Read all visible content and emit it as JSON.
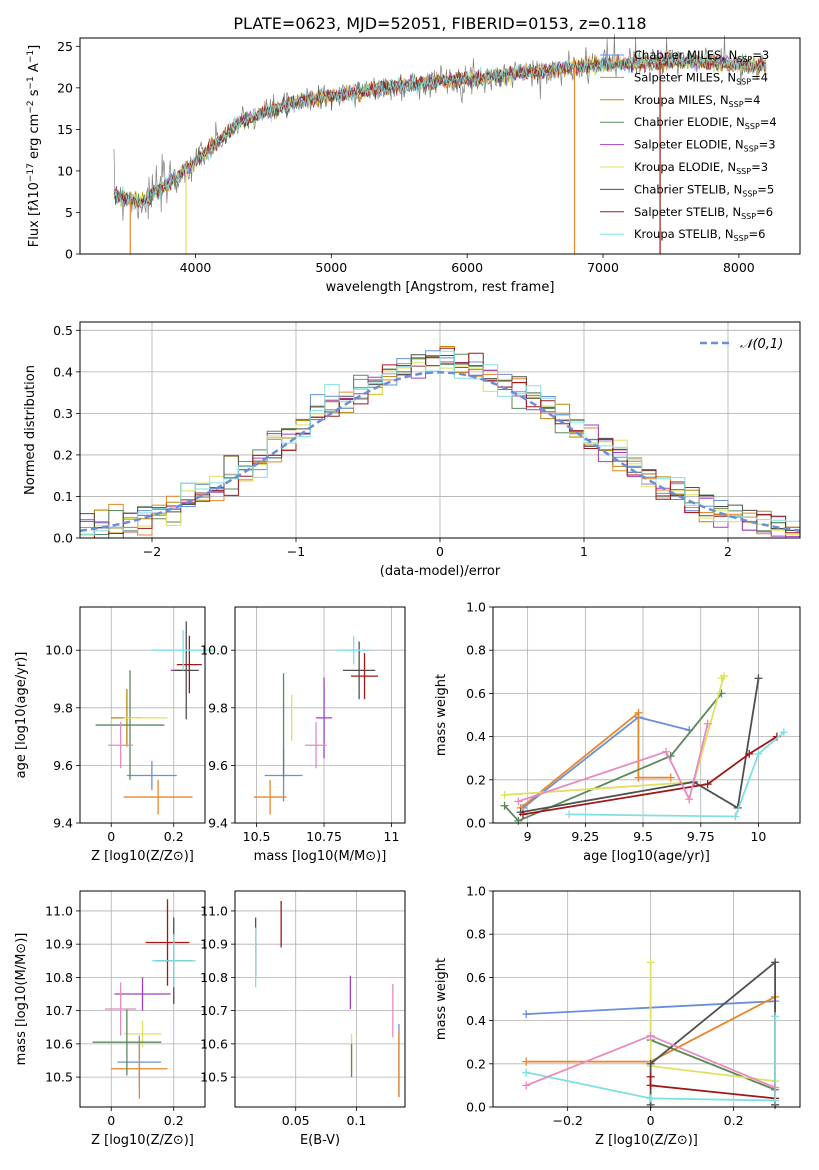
{
  "figure": {
    "title": "PLATE=0623, MJD=52051, FIBERID=0153, z=0.118"
  },
  "chart_data": [
    {
      "id": "spectrum",
      "type": "line",
      "xlabel": "wavelength [Angstrom, rest frame]",
      "ylabel": "Flux [f_λ 10^-17 erg cm^-2 s^-1 A^-1]",
      "xlim": [
        3150,
        8450
      ],
      "ylim": [
        0,
        26
      ],
      "xticks": [
        4000,
        5000,
        6000,
        7000,
        8000
      ],
      "yticks": [
        0,
        5,
        10,
        15,
        20,
        25
      ],
      "grid": false,
      "legend_position": "top-right",
      "observed_color": "#808080",
      "continuum": {
        "x": [
          3400,
          3600,
          3800,
          3950,
          4100,
          4300,
          4500,
          4800,
          5200,
          5600,
          6000,
          6400,
          6800,
          7200,
          7600,
          8000,
          8200
        ],
        "y": [
          7.2,
          6.2,
          8.5,
          10.5,
          12.5,
          15.5,
          17.0,
          18.5,
          19.5,
          20.5,
          21.0,
          21.8,
          22.5,
          23.0,
          23.2,
          22.8,
          22.6
        ]
      },
      "series": [
        {
          "name": "Chabrier MILES, N_SSP=3",
          "color": "#6a8fd8"
        },
        {
          "name": "Salpeter MILES, N_SSP=4",
          "color": "#e8862a"
        },
        {
          "name": "Kroupa MILES, N_SSP=4",
          "color": "#b8860b"
        },
        {
          "name": "Chabrier ELODIE, N_SSP=4",
          "color": "#5a8a5a"
        },
        {
          "name": "Salpeter ELODIE, N_SSP=3",
          "color": "#a040c0"
        },
        {
          "name": "Kroupa ELODIE, N_SSP=3",
          "color": "#e0e060"
        },
        {
          "name": "Chabrier STELIB, N_SSP=5",
          "color": "#505050"
        },
        {
          "name": "Salpeter STELIB, N_SSP=6",
          "color": "#a01818"
        },
        {
          "name": "Kroupa STELIB, N_SSP=6",
          "color": "#80e0e0"
        }
      ]
    },
    {
      "id": "residuals",
      "type": "line",
      "xlabel": "(data-model)/error",
      "ylabel": "Normed distribution",
      "xlim": [
        -2.5,
        2.5
      ],
      "ylim": [
        0,
        0.52
      ],
      "xticks": [
        -2,
        -1,
        0,
        1,
        2
      ],
      "yticks": [
        0.0,
        0.1,
        0.2,
        0.3,
        0.4,
        0.5
      ],
      "grid": true,
      "legend_position": "top-right",
      "reference": {
        "name": "𝒩(0,1)",
        "color": "#6a8fd8",
        "mean": 0,
        "sigma": 1
      },
      "hist_bins": {
        "min": -2.5,
        "max": 2.5,
        "width": 0.1
      },
      "hist_colors": [
        "#6a8fd8",
        "#e8862a",
        "#b8860b",
        "#5a8a5a",
        "#a040c0",
        "#e0e060",
        "#505050",
        "#a01818",
        "#80e0e0"
      ]
    },
    {
      "id": "age_vs_Z",
      "type": "scatter",
      "xlabel": "Z [log10(Z/Z⊙)]",
      "ylabel": "age [log10(age/yr)]",
      "xlim": [
        -0.1,
        0.3
      ],
      "ylim": [
        9.4,
        10.15
      ],
      "xticks": [
        0.0,
        0.2
      ],
      "yticks": [
        9.4,
        9.6,
        9.8,
        10.0
      ],
      "grid": true,
      "points": [
        {
          "x": 0.13,
          "y": 9.565,
          "xerr": 0.08,
          "yerr": 0.05,
          "color": "#6a8fd8"
        },
        {
          "x": 0.15,
          "y": 9.49,
          "xerr": 0.11,
          "yerr": 0.06,
          "color": "#e8862a"
        },
        {
          "x": 0.05,
          "y": 9.765,
          "xerr": 0.05,
          "yerr": 0.1,
          "color": "#b8860b"
        },
        {
          "x": 0.06,
          "y": 9.74,
          "xerr": 0.11,
          "yerr": 0.19,
          "color": "#5a8a5a"
        },
        {
          "x": 0.21,
          "y": 9.93,
          "xerr": 0.02,
          "yerr": 0.0,
          "color": "#a040c0"
        },
        {
          "x": 0.11,
          "y": 9.765,
          "xerr": 0.07,
          "yerr": 0.0,
          "color": "#e0e060"
        },
        {
          "x": 0.24,
          "y": 9.93,
          "xerr": 0.04,
          "yerr": 0.17,
          "color": "#505050"
        },
        {
          "x": 0.25,
          "y": 9.95,
          "xerr": 0.04,
          "yerr": 0.1,
          "color": "#a01818"
        },
        {
          "x": 0.23,
          "y": 10.0,
          "xerr": 0.1,
          "yerr": 0.07,
          "color": "#80e0e0"
        },
        {
          "x": 0.03,
          "y": 9.67,
          "xerr": 0.04,
          "yerr": 0.08,
          "color": "#e88ac0"
        }
      ]
    },
    {
      "id": "age_vs_mass",
      "type": "scatter",
      "xlabel": "mass [log10(M/M⊙)]",
      "ylabel": "",
      "xlim": [
        10.42,
        11.05
      ],
      "ylim": [
        9.4,
        10.15
      ],
      "xticks": [
        10.5,
        10.75,
        11.0
      ],
      "yticks": [
        9.4,
        9.6,
        9.8,
        10.0
      ],
      "grid": true,
      "points": [
        {
          "x": 10.6,
          "y": 9.565,
          "xerr": 0.07,
          "yerr": 0.09,
          "color": "#6a8fd8"
        },
        {
          "x": 10.55,
          "y": 9.49,
          "xerr": 0.06,
          "yerr": 0.06,
          "color": "#e8862a"
        },
        {
          "x": 10.63,
          "y": 9.765,
          "xerr": 0.0,
          "yerr": 0.08,
          "color": "#e0e060"
        },
        {
          "x": 10.6,
          "y": 9.74,
          "xerr": 0.0,
          "yerr": 0.18,
          "color": "#5a8a5a"
        },
        {
          "x": 10.75,
          "y": 9.765,
          "xerr": 0.03,
          "yerr": 0.14,
          "color": "#a040c0"
        },
        {
          "x": 10.88,
          "y": 9.93,
          "xerr": 0.06,
          "yerr": 0.1,
          "color": "#505050"
        },
        {
          "x": 10.9,
          "y": 9.91,
          "xerr": 0.05,
          "yerr": 0.08,
          "color": "#a01818"
        },
        {
          "x": 10.86,
          "y": 10.0,
          "xerr": 0.06,
          "yerr": 0.05,
          "color": "#80e0e0"
        },
        {
          "x": 10.72,
          "y": 9.67,
          "xerr": 0.04,
          "yerr": 0.08,
          "color": "#e88ac0"
        }
      ]
    },
    {
      "id": "weight_vs_age",
      "type": "line",
      "xlabel": "age [log10(age/yr)]",
      "ylabel": "mass weight",
      "xlim": [
        8.85,
        10.18
      ],
      "ylim": [
        0,
        1.0
      ],
      "xticks": [
        9.0,
        9.25,
        9.5,
        9.75,
        10.0
      ],
      "yticks": [
        0.0,
        0.2,
        0.4,
        0.6,
        0.8,
        1.0
      ],
      "grid": true,
      "series": [
        {
          "color": "#6a8fd8",
          "x": [
            8.98,
            9.48,
            9.7
          ],
          "y": [
            0.07,
            0.49,
            0.43
          ]
        },
        {
          "color": "#e8862a",
          "x": [
            8.97,
            9.48,
            9.48,
            9.62
          ],
          "y": [
            0.07,
            0.51,
            0.21,
            0.21
          ]
        },
        {
          "color": "#5a8a5a",
          "x": [
            8.9,
            8.96,
            9.62,
            9.84
          ],
          "y": [
            0.08,
            0.01,
            0.31,
            0.6
          ]
        },
        {
          "color": "#e0e060",
          "x": [
            8.9,
            9.72,
            9.85,
            9.84
          ],
          "y": [
            0.13,
            0.19,
            0.68,
            0.67
          ]
        },
        {
          "color": "#505050",
          "x": [
            8.97,
            9.72,
            9.91,
            10.0
          ],
          "y": [
            0.05,
            0.19,
            0.07,
            0.67
          ]
        },
        {
          "color": "#a01818",
          "x": [
            8.98,
            9.78,
            9.96,
            10.08
          ],
          "y": [
            0.04,
            0.18,
            0.32,
            0.4
          ]
        },
        {
          "color": "#80e0e0",
          "x": [
            9.18,
            9.9,
            10.0,
            10.11
          ],
          "y": [
            0.04,
            0.03,
            0.32,
            0.42
          ]
        },
        {
          "color": "#e88ac0",
          "x": [
            8.96,
            9.6,
            9.7,
            9.78
          ],
          "y": [
            0.1,
            0.33,
            0.11,
            0.46
          ]
        }
      ]
    },
    {
      "id": "mass_vs_Z",
      "type": "scatter",
      "xlabel": "Z [log10(Z/Z⊙)]",
      "ylabel": "mass [log10(M/M⊙)]",
      "xlim": [
        -0.1,
        0.3
      ],
      "ylim": [
        10.41,
        11.06
      ],
      "xticks": [
        0.0,
        0.2
      ],
      "yticks": [
        10.5,
        10.6,
        10.7,
        10.8,
        10.9,
        11.0
      ],
      "grid": true,
      "points": [
        {
          "x": 0.09,
          "y": 10.545,
          "xerr": 0.07,
          "yerr": 0.08,
          "color": "#6a8fd8"
        },
        {
          "x": 0.09,
          "y": 10.525,
          "xerr": 0.09,
          "yerr": 0.09,
          "color": "#e8862a"
        },
        {
          "x": 0.1,
          "y": 10.63,
          "xerr": 0.06,
          "yerr": 0.04,
          "color": "#e0e060"
        },
        {
          "x": 0.05,
          "y": 10.605,
          "xerr": 0.11,
          "yerr": 0.1,
          "color": "#5a8a5a"
        },
        {
          "x": 0.1,
          "y": 10.75,
          "xerr": 0.09,
          "yerr": 0.05,
          "color": "#a040c0"
        },
        {
          "x": 0.2,
          "y": 10.85,
          "xerr": 0.06,
          "yerr": 0.13,
          "color": "#505050"
        },
        {
          "x": 0.18,
          "y": 10.905,
          "xerr": 0.07,
          "yerr": 0.13,
          "color": "#a01818"
        },
        {
          "x": 0.2,
          "y": 10.85,
          "xerr": 0.07,
          "yerr": 0.08,
          "color": "#80e0e0"
        },
        {
          "x": 0.03,
          "y": 10.705,
          "xerr": 0.05,
          "yerr": 0.08,
          "color": "#e88ac0"
        }
      ]
    },
    {
      "id": "mass_vs_EBV",
      "type": "scatter",
      "xlabel": "E(B-V)",
      "ylabel": "",
      "xlim": [
        0.0,
        0.14
      ],
      "ylim": [
        10.41,
        11.06
      ],
      "xticks": [
        0.05,
        0.1
      ],
      "yticks": [
        10.5,
        10.6,
        10.7,
        10.8,
        10.9,
        11.0
      ],
      "grid": true,
      "points": [
        {
          "x": 0.135,
          "y": 10.55,
          "xerr": 0,
          "yerr": 0.11,
          "color": "#6a8fd8"
        },
        {
          "x": 0.135,
          "y": 10.54,
          "xerr": 0,
          "yerr": 0.1,
          "color": "#e8862a"
        },
        {
          "x": 0.096,
          "y": 10.57,
          "xerr": 0,
          "yerr": 0.06,
          "color": "#e0e060"
        },
        {
          "x": 0.096,
          "y": 10.55,
          "xerr": 0,
          "yerr": 0.05,
          "color": "#5a8a5a"
        },
        {
          "x": 0.095,
          "y": 10.755,
          "xerr": 0,
          "yerr": 0.05,
          "color": "#a040c0"
        },
        {
          "x": 0.017,
          "y": 10.89,
          "xerr": 0,
          "yerr": 0.09,
          "color": "#505050"
        },
        {
          "x": 0.038,
          "y": 10.96,
          "xerr": 0,
          "yerr": 0.07,
          "color": "#a01818"
        },
        {
          "x": 0.017,
          "y": 10.86,
          "xerr": 0,
          "yerr": 0.09,
          "color": "#80e0e0"
        },
        {
          "x": 0.13,
          "y": 10.7,
          "xerr": 0,
          "yerr": 0.08,
          "color": "#e88ac0"
        }
      ]
    },
    {
      "id": "weight_vs_Z",
      "type": "line",
      "xlabel": "Z [log10(Z/Z⊙)]",
      "ylabel": "mass weight",
      "xlim": [
        -0.38,
        0.36
      ],
      "ylim": [
        0,
        1.0
      ],
      "xticks": [
        -0.2,
        0.0,
        0.2
      ],
      "yticks": [
        0.0,
        0.2,
        0.4,
        0.6,
        0.8,
        1.0
      ],
      "grid": true,
      "series": [
        {
          "color": "#6a8fd8",
          "x": [
            -0.3,
            0.3
          ],
          "y": [
            0.43,
            0.49
          ]
        },
        {
          "color": "#e8862a",
          "x": [
            -0.3,
            0.0,
            0.3,
            0.3
          ],
          "y": [
            0.21,
            0.21,
            0.51,
            0.01
          ]
        },
        {
          "color": "#5a8a5a",
          "x": [
            0.0,
            0.3
          ],
          "y": [
            0.31,
            0.08
          ]
        },
        {
          "color": "#e0e060",
          "x": [
            0.0,
            0.0,
            0.3
          ],
          "y": [
            0.67,
            0.19,
            0.12
          ]
        },
        {
          "color": "#505050",
          "x": [
            0.0,
            0.0,
            0.3,
            0.3
          ],
          "y": [
            0.01,
            0.2,
            0.67,
            0.01
          ]
        },
        {
          "color": "#a01818",
          "x": [
            0.0,
            0.0,
            0.3
          ],
          "y": [
            0.14,
            0.1,
            0.04
          ]
        },
        {
          "color": "#80e0e0",
          "x": [
            -0.3,
            0.0,
            0.3,
            0.3
          ],
          "y": [
            0.16,
            0.04,
            0.03,
            0.42
          ]
        },
        {
          "color": "#e88ac0",
          "x": [
            -0.3,
            0.0,
            0.3
          ],
          "y": [
            0.1,
            0.33,
            0.09
          ]
        }
      ]
    }
  ]
}
